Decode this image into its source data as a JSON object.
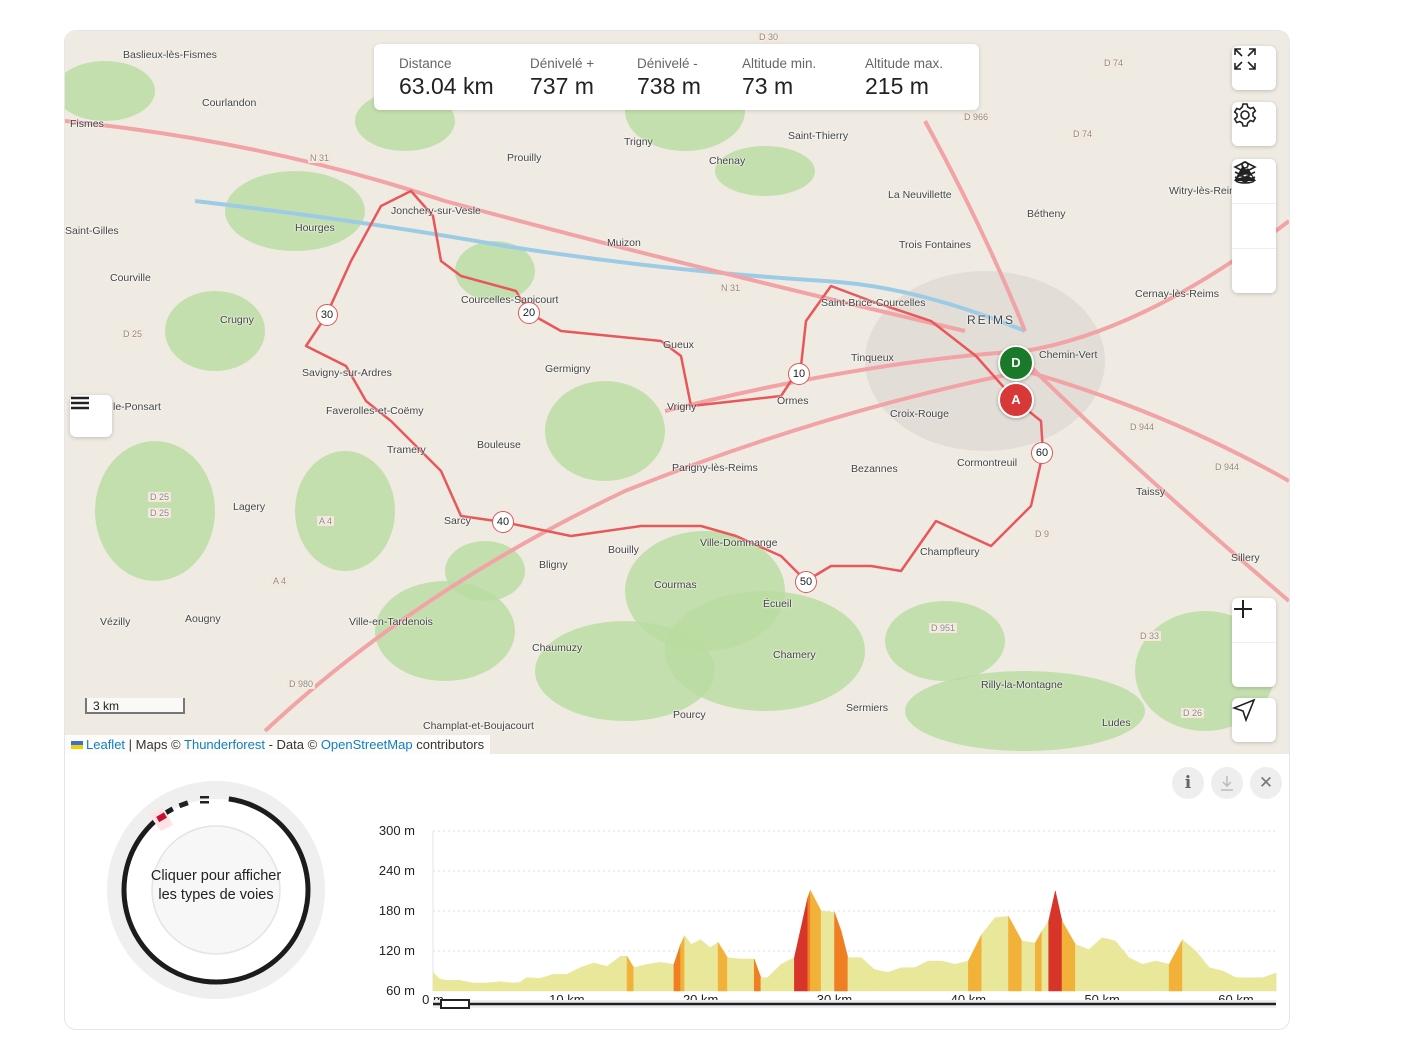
{
  "stats": [
    {
      "label": "Distance",
      "value": "63.04 km"
    },
    {
      "label": "Dénivelé +",
      "value": "737 m"
    },
    {
      "label": "Dénivelé -",
      "value": "738 m"
    },
    {
      "label": "Altitude min.",
      "value": "73 m"
    },
    {
      "label": "Altitude max.",
      "value": "215 m"
    }
  ],
  "map": {
    "places": [
      "Baslieux-lès-Fismes",
      "Courlandon",
      "Fismes",
      "Hourges",
      "Courville",
      "Crugny",
      "Savigny-sur-Ardres",
      "Faverolles-et-Coëmy",
      "Prouilly",
      "Trigny",
      "Chenay",
      "Saint-Thierry",
      "La Neuvillette",
      "Bétheny",
      "Trois Fontaines",
      "Muizon",
      "Courcelles-Sapicourt",
      "Gueux",
      "Germigny",
      "Vrigny",
      "Ormes",
      "Tinqueux",
      "Saint-Brice-Courcelles",
      "REIMS",
      "Croix-Rouge",
      "Bezannes",
      "Parigny-lès-Reims",
      "Bouleuse",
      "Lagery",
      "Bligny",
      "Bouilly",
      "Courmas",
      "Ville-Dommange",
      "Écueil",
      "Champfleury",
      "Taissy",
      "Sillery",
      "Cernay-lès-Reims",
      "Witry-lès-Reims",
      "Vézilly",
      "Aougny",
      "Ville-en-Tardenois",
      "Chaumuzy",
      "Chamery",
      "Rilly-la-Montagne",
      "Sermiers",
      "Pourcy",
      "Champlat-et-Boujacourt",
      "Ludes",
      "Cormontreuil",
      "Chemin-Vert",
      "Jonchery-sur-Vesle",
      "Sarcy",
      "Tramery",
      "le-Ponsart",
      "Saint-Gilles"
    ],
    "road_labels": [
      "N 31",
      "N 31",
      "D 966",
      "D 74",
      "D 74",
      "D 25",
      "D 25",
      "D 25",
      "A 4",
      "A 4",
      "D 980",
      "D 951",
      "D 9",
      "D 944",
      "D 944",
      "D 33",
      "D 26",
      "D 30"
    ],
    "km_markers": [
      "10",
      "20",
      "30",
      "40",
      "50",
      "60"
    ],
    "start_label": "D",
    "end_label": "A",
    "scale_label": "3 km",
    "attribution": {
      "leaflet": "Leaflet",
      "maps": "| Maps ©",
      "thunderforest": "Thunderforest",
      "data": "- Data ©",
      "osm": "OpenStreetMap",
      "contrib": "contributors"
    },
    "controls": [
      "fullscreen-icon",
      "gear-icon",
      "layers-icon",
      "mountain-icon",
      "person-pin-icon",
      "zoom-in-icon",
      "zoom-out-icon",
      "locate-icon",
      "menu-icon"
    ],
    "colors": {
      "route": "#e8575a",
      "start": "#1a7a2a",
      "end": "#d93838"
    }
  },
  "donut": {
    "text": "Cliquer pour afficher les types de voies"
  },
  "profile_buttons": {
    "info": "i",
    "close": "✕"
  },
  "chart_data": {
    "type": "area",
    "xlabel": "",
    "ylabel": "",
    "x_ticks": [
      "0 m",
      "10 km",
      "20 km",
      "30 km",
      "40 km",
      "50 km",
      "60 km"
    ],
    "y_ticks": [
      "300 m",
      "240 m",
      "180 m",
      "120 m",
      "60 m"
    ],
    "xlim": [
      0,
      63.04
    ],
    "ylim": [
      60,
      300
    ],
    "grid": true,
    "x": [
      0,
      0.5,
      1,
      2,
      3,
      4,
      5,
      6,
      6.5,
      7,
      8,
      9,
      10,
      11,
      12,
      13,
      14,
      14.5,
      15,
      16,
      17,
      18,
      18.5,
      18.8,
      19.3,
      20,
      20.7,
      21.3,
      22,
      23,
      24,
      24.5,
      25,
      26,
      27,
      28,
      28.2,
      29,
      30,
      30.5,
      31,
      32,
      33,
      34,
      35,
      36,
      37,
      38,
      39,
      40,
      41,
      42,
      43,
      44,
      45,
      45.5,
      46,
      46.5,
      47,
      48,
      49,
      50,
      51,
      52,
      53,
      54,
      55,
      56,
      57,
      58,
      59,
      60,
      61,
      62,
      63
    ],
    "y": [
      88,
      78,
      76,
      76,
      72,
      72,
      74,
      72,
      73,
      80,
      79,
      85,
      85,
      95,
      102,
      97,
      112,
      112,
      95,
      100,
      103,
      100,
      130,
      143,
      130,
      137,
      125,
      133,
      110,
      108,
      108,
      80,
      80,
      100,
      110,
      200,
      211,
      180,
      178,
      150,
      110,
      110,
      92,
      88,
      95,
      95,
      105,
      105,
      100,
      105,
      145,
      170,
      172,
      135,
      132,
      150,
      165,
      210,
      165,
      130,
      122,
      140,
      135,
      110,
      100,
      105,
      100,
      137,
      120,
      95,
      90,
      80,
      80,
      80,
      87
    ],
    "colors": {
      "flat": "#e8e79a",
      "moderate": "#f2b23a",
      "steep": "#ef7f22",
      "very_steep": "#d8352a"
    }
  }
}
